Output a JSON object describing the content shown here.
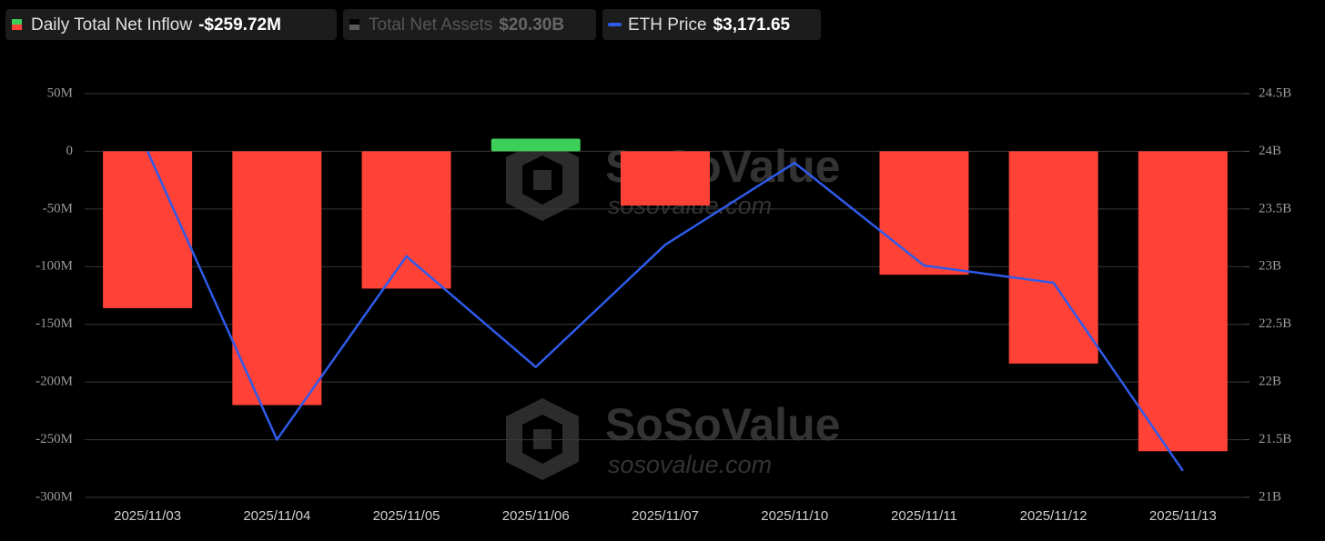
{
  "chart_data": {
    "type": "bar",
    "categories": [
      "2025/11/03",
      "2025/11/04",
      "2025/11/05",
      "2025/11/06",
      "2025/11/07",
      "2025/11/10",
      "2025/11/11",
      "2025/11/12",
      "2025/11/13"
    ],
    "series": [
      {
        "name": "Daily Total Net Inflow",
        "latest": "-$259.72M",
        "color": "#ff4136",
        "positive_color": "#3ecf5a",
        "values": [
          -136,
          -220,
          -119,
          11,
          -47,
          0,
          -107,
          -184,
          -260
        ]
      },
      {
        "name": "Total Net Assets",
        "latest": "$20.30B",
        "color": "#5a5a5a",
        "hidden": true
      },
      {
        "name": "ETH Price",
        "latest": "$3,171.65",
        "color": "#2f5bea",
        "type": "line",
        "axis": "y2",
        "values": [
          24.0,
          21.5,
          23.09,
          22.13,
          23.19,
          23.9,
          23.01,
          22.86,
          21.23
        ]
      }
    ],
    "ylim": [
      -300,
      50
    ],
    "yticks": [
      {
        "value": 50,
        "label": "50M"
      },
      0,
      {
        "value": -50,
        "label": "-50M"
      },
      {
        "value": -100,
        "label": "-100M"
      },
      {
        "value": -150,
        "label": "-150M"
      },
      {
        "value": -200,
        "label": "-200M"
      },
      {
        "value": -250,
        "label": "-250M"
      },
      {
        "value": -300,
        "label": "-300M"
      }
    ],
    "y2lim": [
      21,
      24.5
    ],
    "y2ticks": [
      {
        "value": 24.5,
        "label": "24.5B"
      },
      {
        "value": 24,
        "label": "24B"
      },
      {
        "value": 23.5,
        "label": "23.5B"
      },
      {
        "value": 23,
        "label": "23B"
      },
      {
        "value": 22.5,
        "label": "22.5B"
      },
      {
        "value": 22,
        "label": "22B"
      },
      {
        "value": 21.5,
        "label": "21.5B"
      },
      {
        "value": 21,
        "label": "21B"
      }
    ],
    "grid": true,
    "watermark": {
      "brand": "SoSoValue",
      "site": "sosovalue.com"
    }
  }
}
